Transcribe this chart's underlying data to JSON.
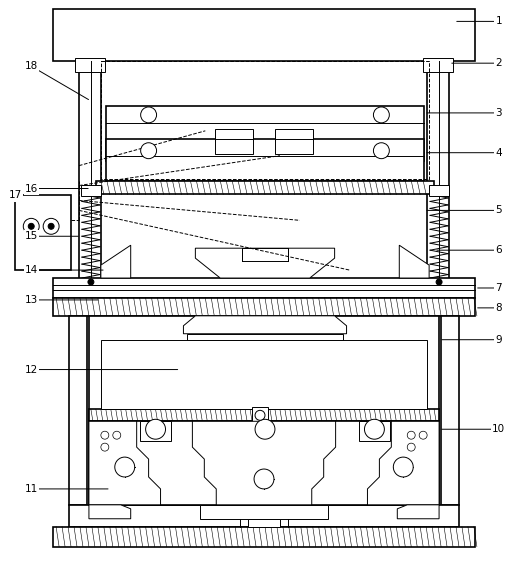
{
  "background_color": "#ffffff",
  "line_color": "#000000",
  "lw": 1.2,
  "tlw": 0.7
}
